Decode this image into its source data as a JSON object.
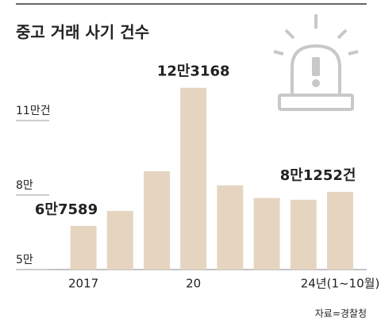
{
  "chart_data": {
    "type": "bar",
    "title": "중고 거래 사기 건수",
    "categories": [
      "2017",
      null,
      null,
      "20",
      null,
      null,
      null,
      "24년(1~10월)"
    ],
    "values": [
      67589,
      73600,
      89600,
      123168,
      83900,
      78800,
      78100,
      81252
    ],
    "value_labels": [
      "6만7589",
      null,
      null,
      "12만3168",
      null,
      null,
      null,
      "8만1252건"
    ],
    "color": "#e5d5c0",
    "ylim": [
      50000,
      125000
    ],
    "yticks": [
      {
        "value": 50000,
        "label": "5만"
      },
      {
        "value": 80000,
        "label": "8만"
      },
      {
        "value": 110000,
        "label": "11만건"
      }
    ],
    "source": "자료=경찰청"
  }
}
